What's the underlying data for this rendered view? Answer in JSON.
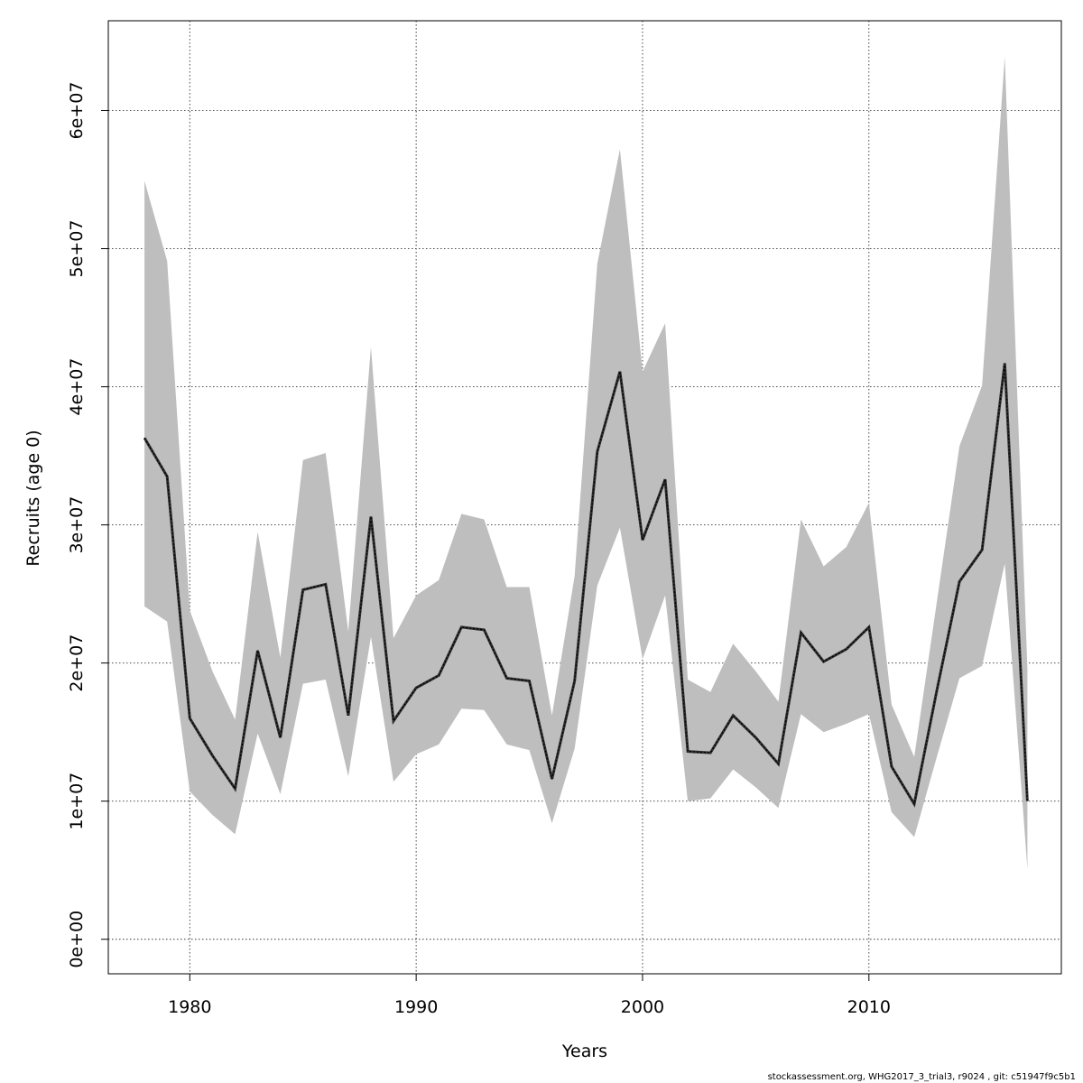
{
  "chart_data": {
    "type": "line",
    "title": "",
    "xlabel": "Years",
    "ylabel": "Recruits (age 0)",
    "xlim": [
      1976.4,
      2018.5
    ],
    "ylim": [
      -2500000,
      66500000
    ],
    "xticks": [
      1980,
      1990,
      2000,
      2010
    ],
    "xtick_labels": [
      "1980",
      "1990",
      "2000",
      "2010"
    ],
    "yticks": [
      0,
      10000000,
      20000000,
      30000000,
      40000000,
      50000000,
      60000000
    ],
    "ytick_labels": [
      "0e+00",
      "1e+07",
      "2e+07",
      "3e+07",
      "4e+07",
      "5e+07",
      "6e+07"
    ],
    "grid": true,
    "colors": {
      "band": "#bebebe",
      "line": "#000000"
    },
    "x": [
      1978,
      1979,
      1980,
      1981,
      1982,
      1983,
      1984,
      1985,
      1986,
      1987,
      1988,
      1989,
      1990,
      1991,
      1992,
      1993,
      1994,
      1995,
      1996,
      1997,
      1998,
      1999,
      2000,
      2001,
      2002,
      2003,
      2004,
      2005,
      2006,
      2007,
      2008,
      2009,
      2010,
      2011,
      2012,
      2013,
      2014,
      2015,
      2016,
      2017
    ],
    "series": [
      {
        "values": [
          36300000,
          33500000,
          16000000,
          13300000,
          10900000,
          20900000,
          14600000,
          25300000,
          25700000,
          16200000,
          30600000,
          15800000,
          18200000,
          19100000,
          22600000,
          22400000,
          18900000,
          18700000,
          11600000,
          18700000,
          35300000,
          41100000,
          28900000,
          33300000,
          13600000,
          13500000,
          16200000,
          14600000,
          12700000,
          22200000,
          20100000,
          21000000,
          22600000,
          12500000,
          9800000,
          18000000,
          25900000,
          28200000,
          41700000,
          10000000
        ],
        "lower": [
          24100000,
          23000000,
          10700000,
          9000000,
          7600000,
          14900000,
          10500000,
          18500000,
          18800000,
          11800000,
          21900000,
          11400000,
          13400000,
          14100000,
          16700000,
          16600000,
          14100000,
          13700000,
          8400000,
          13800000,
          25600000,
          29800000,
          20300000,
          24900000,
          10000000,
          10200000,
          12300000,
          11000000,
          9500000,
          16300000,
          15000000,
          15600000,
          16300000,
          9200000,
          7400000,
          13200000,
          18900000,
          19800000,
          27200000,
          5100000
        ],
        "upper": [
          54900000,
          49100000,
          23800000,
          19400000,
          15900000,
          29500000,
          20400000,
          34700000,
          35200000,
          22300000,
          42900000,
          21800000,
          24900000,
          26000000,
          30800000,
          30400000,
          25500000,
          25500000,
          16200000,
          26300000,
          48900000,
          57200000,
          41100000,
          44600000,
          18800000,
          17900000,
          21400000,
          19400000,
          17200000,
          30400000,
          27000000,
          28400000,
          31600000,
          17000000,
          13200000,
          24400000,
          35700000,
          40100000,
          63900000,
          19600000
        ]
      }
    ]
  },
  "footer": "stockassessment.org, WHG2017_3_trial3, r9024 , git: c51947f9c5b1"
}
